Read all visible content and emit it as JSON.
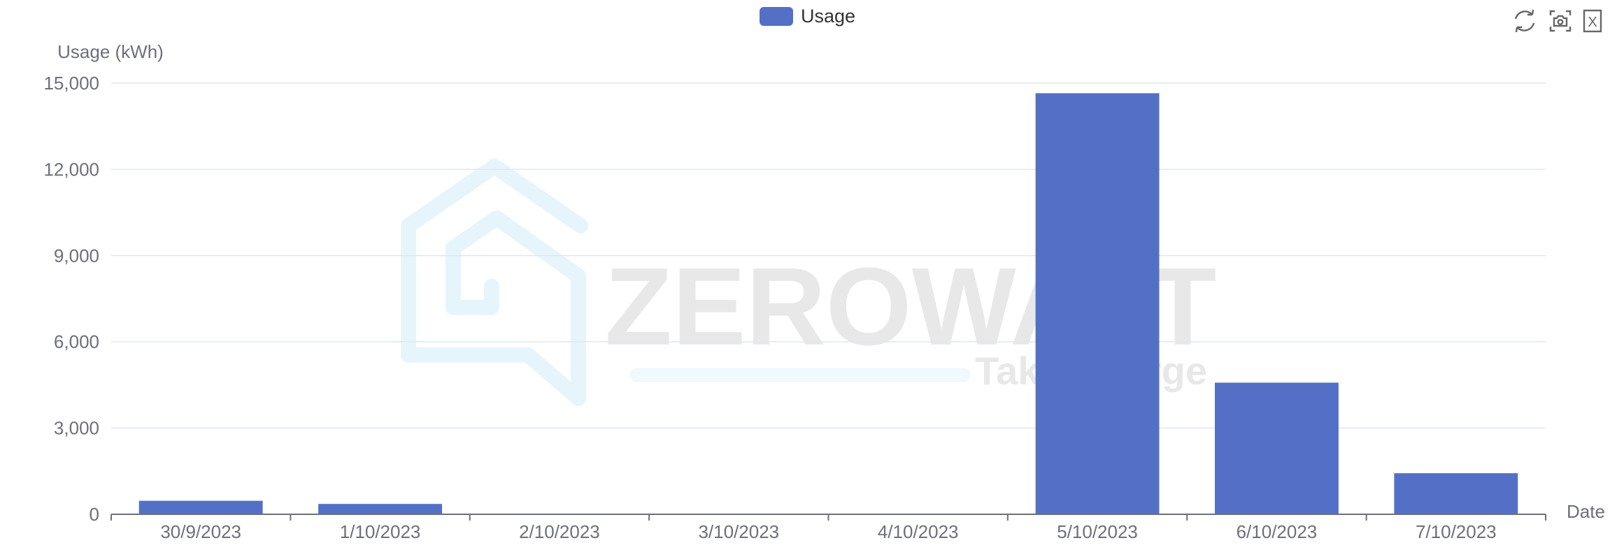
{
  "brand": {
    "name": "ZEROWATT",
    "tagline": "Take Charge"
  },
  "toolbox": {
    "restore_icon": "refresh-icon",
    "save_icon": "camera-icon",
    "export_icon": "excel-icon",
    "export_glyph": "X"
  },
  "colors": {
    "bar": "#5470c6",
    "watermark_icon": "#e6f5fc",
    "watermark_text": "#e8e8e8"
  },
  "chart_data": {
    "type": "bar",
    "legend": {
      "position": "top-center",
      "entries": [
        "Usage"
      ]
    },
    "xlabel": "Date",
    "ylabel": "Usage (kWh)",
    "ylim": [
      0,
      15000
    ],
    "yticks": [
      0,
      3000,
      6000,
      9000,
      12000,
      15000
    ],
    "ytick_labels": [
      "0",
      "3,000",
      "6,000",
      "9,000",
      "12,000",
      "15,000"
    ],
    "grid": true,
    "categories": [
      "30/9/2023",
      "1/10/2023",
      "2/10/2023",
      "3/10/2023",
      "4/10/2023",
      "5/10/2023",
      "6/10/2023",
      "7/10/2023"
    ],
    "series": [
      {
        "name": "Usage",
        "values": [
          470,
          360,
          0,
          0,
          0,
          14650,
          4580,
          1430
        ]
      }
    ]
  }
}
